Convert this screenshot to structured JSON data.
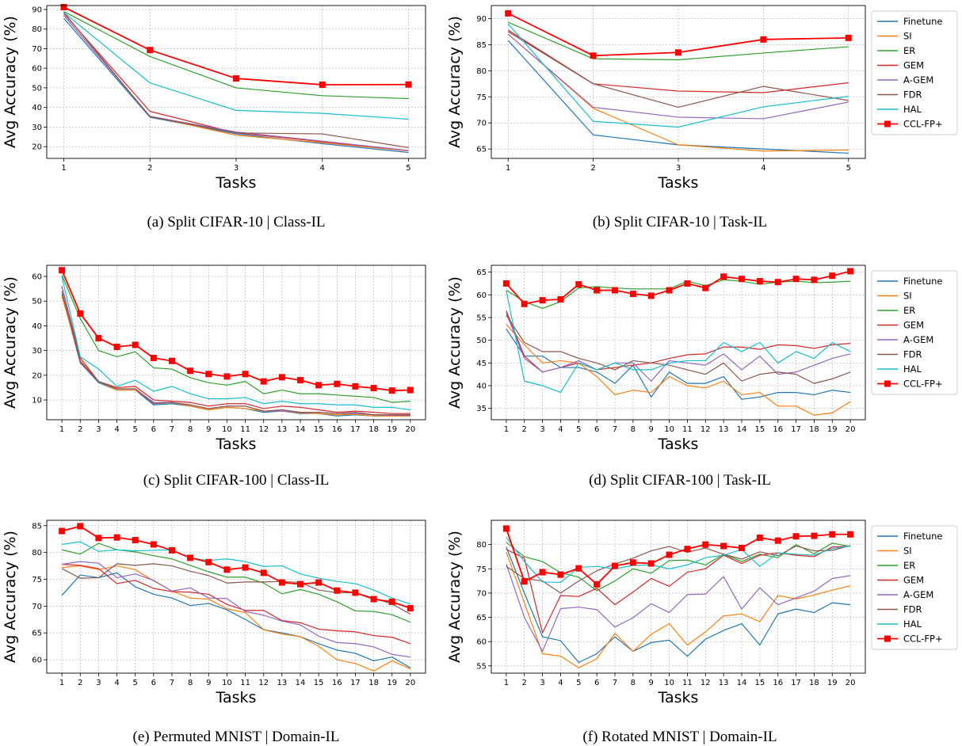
{
  "colors": {
    "Finetune": "#1f77b4",
    "SI": "#ff7f0e",
    "ER": "#2ca02c",
    "GEM": "#d62728",
    "A-GEM": "#9467bd",
    "FDR": "#8c564b",
    "HAL": "#17becf",
    "CCL-FP+": "#ff0000"
  },
  "chart_data": [
    {
      "type": "line",
      "caption": "(a) Split CIFAR-10 | Class-IL",
      "xlabel": "Tasks",
      "ylabel": "Avg Accuracy (%)",
      "x": [
        1,
        2,
        3,
        4,
        5
      ],
      "ylim": [
        14,
        92
      ],
      "yticks": [
        20,
        30,
        40,
        50,
        60,
        70,
        80,
        90
      ],
      "grid": true,
      "legend": "none",
      "series": [
        {
          "name": "Finetune",
          "values": [
            85.5,
            35.0,
            26.5,
            21.5,
            17.0
          ]
        },
        {
          "name": "SI",
          "values": [
            87.0,
            35.5,
            25.8,
            22.0,
            17.8
          ]
        },
        {
          "name": "ER",
          "values": [
            89.0,
            66.0,
            50.0,
            46.0,
            44.5
          ]
        },
        {
          "name": "GEM",
          "values": [
            88.0,
            38.0,
            27.0,
            22.5,
            18.0
          ]
        },
        {
          "name": "A-GEM",
          "values": [
            87.0,
            35.5,
            27.5,
            22.8,
            18.0
          ]
        },
        {
          "name": "FDR",
          "values": [
            88.5,
            35.3,
            27.0,
            26.5,
            19.5
          ]
        },
        {
          "name": "HAL",
          "values": [
            88.5,
            52.5,
            38.5,
            37.0,
            34.0
          ]
        },
        {
          "name": "CCL-FP+",
          "values": [
            91.2,
            69.3,
            54.8,
            51.6,
            51.7
          ]
        }
      ]
    },
    {
      "type": "line",
      "caption": "(b) Split CIFAR-10 | Task-IL",
      "xlabel": "Tasks",
      "ylabel": "Avg Accuracy (%)",
      "x": [
        1,
        2,
        3,
        4,
        5
      ],
      "ylim": [
        63.2,
        92.5
      ],
      "yticks": [
        65,
        70,
        75,
        80,
        85,
        90
      ],
      "grid": true,
      "legend": "right-outside",
      "series": [
        {
          "name": "Finetune",
          "values": [
            85.8,
            67.7,
            65.8,
            65.0,
            64.2
          ]
        },
        {
          "name": "SI",
          "values": [
            87.0,
            72.8,
            65.8,
            64.6,
            64.8
          ]
        },
        {
          "name": "ER",
          "values": [
            89.3,
            82.3,
            82.1,
            83.4,
            84.6
          ]
        },
        {
          "name": "GEM",
          "values": [
            87.8,
            77.5,
            76.1,
            75.8,
            77.7
          ]
        },
        {
          "name": "A-GEM",
          "values": [
            87.0,
            73.0,
            71.1,
            70.8,
            74.0
          ]
        },
        {
          "name": "FDR",
          "values": [
            87.5,
            77.5,
            73.0,
            77.0,
            74.3
          ]
        },
        {
          "name": "HAL",
          "values": [
            89.0,
            70.3,
            69.2,
            73.1,
            75.1
          ]
        },
        {
          "name": "CCL-FP+",
          "values": [
            91.0,
            82.9,
            83.5,
            86.0,
            86.3
          ]
        }
      ]
    },
    {
      "type": "line",
      "caption": "(c) Split CIFAR-100 | Class-IL",
      "xlabel": "Tasks",
      "ylabel": "Avg Accuracy (%)",
      "x": [
        1,
        2,
        3,
        4,
        5,
        6,
        7,
        8,
        9,
        10,
        11,
        12,
        13,
        14,
        15,
        16,
        17,
        18,
        19,
        20
      ],
      "ylim": [
        2,
        64.5
      ],
      "yticks": [
        10,
        20,
        30,
        40,
        50,
        60
      ],
      "grid": true,
      "legend": "none",
      "series": [
        {
          "name": "Finetune",
          "values": [
            53,
            25,
            17,
            14,
            14,
            8,
            8.5,
            7.5,
            6,
            7,
            6.5,
            5,
            5.5,
            4.5,
            4.5,
            3.5,
            4,
            3.5,
            3.5,
            3.5
          ]
        },
        {
          "name": "SI",
          "values": [
            52,
            26,
            17.5,
            14,
            14,
            9,
            9,
            7.5,
            6,
            7,
            6.5,
            5.5,
            5.5,
            4.8,
            4.5,
            4,
            4.2,
            3.5,
            3.5,
            3.5
          ]
        },
        {
          "name": "ER",
          "values": [
            60.5,
            43,
            30,
            27.5,
            29.5,
            23,
            22.5,
            19,
            17,
            16,
            17.5,
            12.5,
            14,
            12.5,
            12.5,
            12,
            11.5,
            11,
            9,
            9.5
          ]
        },
        {
          "name": "GEM",
          "values": [
            56,
            27,
            17.5,
            15,
            15.5,
            10,
            9.5,
            9,
            7.5,
            8.5,
            8.5,
            6.5,
            7.5,
            7,
            6,
            5,
            5.5,
            5,
            4.5,
            4.5
          ]
        },
        {
          "name": "A-GEM",
          "values": [
            56,
            25,
            17.5,
            14.5,
            14.5,
            9,
            9,
            8,
            6.5,
            7.5,
            7.5,
            5.5,
            5.5,
            5,
            5,
            4.5,
            4.5,
            4,
            3.8,
            3.8
          ]
        },
        {
          "name": "FDR",
          "values": [
            54,
            25.5,
            17.5,
            14.5,
            14.5,
            8.5,
            9,
            8,
            6.5,
            7.5,
            7.5,
            5.5,
            6,
            5,
            5,
            4.5,
            5,
            4,
            4,
            4
          ]
        },
        {
          "name": "HAL",
          "values": [
            60,
            27.5,
            22.5,
            15.5,
            18,
            13.5,
            15.5,
            12.5,
            10.5,
            10.5,
            11,
            8.5,
            9.5,
            8.5,
            8.5,
            8,
            8,
            7,
            7,
            6
          ]
        },
        {
          "name": "CCL-FP+",
          "values": [
            62.5,
            45,
            35,
            31.5,
            32.3,
            27,
            25.8,
            21.8,
            20.5,
            19.5,
            20.5,
            17.5,
            19.2,
            18,
            16,
            16.5,
            15.5,
            14.8,
            13.8,
            14
          ]
        }
      ]
    },
    {
      "type": "line",
      "caption": "(d) Split CIFAR-100 | Task-IL",
      "xlabel": "Tasks",
      "ylabel": "Avg Accuracy (%)",
      "x": [
        1,
        2,
        3,
        4,
        5,
        6,
        7,
        8,
        9,
        10,
        11,
        12,
        13,
        14,
        15,
        16,
        17,
        18,
        19,
        20
      ],
      "ylim": [
        32.5,
        66.5
      ],
      "yticks": [
        35,
        40,
        45,
        50,
        55,
        60,
        65
      ],
      "grid": true,
      "legend": "right-outside",
      "series": [
        {
          "name": "Finetune",
          "values": [
            52.5,
            46.5,
            46.5,
            44,
            44,
            43,
            40.5,
            44.5,
            37.5,
            43,
            40.5,
            40.5,
            42,
            37,
            37.5,
            38.5,
            38.5,
            38,
            39,
            38.5
          ]
        },
        {
          "name": "SI",
          "values": [
            53.5,
            49,
            45,
            45.5,
            45,
            42,
            38,
            39,
            38.5,
            42,
            40,
            39.5,
            41,
            38,
            38.5,
            35.5,
            35.5,
            33.5,
            34,
            36.5
          ]
        },
        {
          "name": "ER",
          "values": [
            61,
            58.5,
            57,
            58.5,
            61.5,
            61.8,
            61.5,
            61.3,
            61.3,
            61.3,
            63,
            62,
            63.3,
            63,
            62.3,
            62.8,
            63,
            62.7,
            62.8,
            63
          ]
        },
        {
          "name": "GEM",
          "values": [
            56.5,
            46.5,
            43,
            44,
            45,
            43.5,
            44,
            44.5,
            45,
            46,
            46.8,
            47,
            48.5,
            48.5,
            48,
            49,
            48.8,
            48.2,
            49,
            49.3
          ]
        },
        {
          "name": "A-GEM",
          "values": [
            56,
            46,
            43,
            44,
            45.5,
            43.5,
            45,
            45,
            41,
            45.5,
            45,
            44.5,
            47,
            43.5,
            46.5,
            42.5,
            43,
            44.5,
            46,
            47
          ]
        },
        {
          "name": "FDR",
          "values": [
            55.5,
            49.5,
            47.5,
            47.5,
            46,
            45,
            43.5,
            45.5,
            45,
            44.5,
            43.5,
            42.5,
            45,
            41,
            42.5,
            43,
            42.5,
            40.5,
            41.5,
            43
          ]
        },
        {
          "name": "HAL",
          "values": [
            61,
            41,
            40,
            38.5,
            45,
            43.5,
            45,
            43.5,
            43.5,
            45,
            45.5,
            45.5,
            49.5,
            47.5,
            49.5,
            45,
            47.5,
            46,
            49.5,
            47.5
          ]
        },
        {
          "name": "CCL-FP+",
          "values": [
            62.5,
            58,
            58.8,
            59,
            62.3,
            61,
            61,
            60.2,
            59.8,
            61,
            62.5,
            61.5,
            64,
            63.5,
            63,
            62.8,
            63.5,
            63.3,
            64.2,
            65.2
          ]
        }
      ]
    },
    {
      "type": "line",
      "caption": "(e) Permuted MNIST | Domain-IL",
      "xlabel": "Tasks",
      "ylabel": "Avg Accuracy (%)",
      "x": [
        1,
        2,
        3,
        4,
        5,
        6,
        7,
        8,
        9,
        10,
        11,
        12,
        13,
        14,
        15,
        16,
        17,
        18,
        19,
        20
      ],
      "ylim": [
        57.5,
        86
      ],
      "yticks": [
        60,
        65,
        70,
        75,
        80,
        85
      ],
      "grid": true,
      "legend": "none",
      "series": [
        {
          "name": "Finetune",
          "values": [
            72,
            75.8,
            75.3,
            76.2,
            73.6,
            72.2,
            71.5,
            70.1,
            70.5,
            69.3,
            67.5,
            65.6,
            65,
            64.3,
            63,
            61.8,
            61.2,
            59.8,
            60.5,
            58.5
          ]
        },
        {
          "name": "SI",
          "values": [
            77.2,
            77.5,
            76.8,
            77.5,
            76.8,
            74.7,
            72.8,
            71.5,
            71.3,
            69.5,
            68.8,
            65.6,
            64.8,
            64.3,
            62.5,
            60,
            59.3,
            57.9,
            59.8,
            58.3
          ]
        },
        {
          "name": "ER",
          "values": [
            80.5,
            79.7,
            81.7,
            80.5,
            80.1,
            79.4,
            78.8,
            77.6,
            76.4,
            75.4,
            75.4,
            74.3,
            72.3,
            73.1,
            72.2,
            70.8,
            69.1,
            69,
            68.4,
            67
          ]
        },
        {
          "name": "GEM",
          "values": [
            77.8,
            77.6,
            77,
            74.2,
            74.8,
            73.3,
            72.7,
            72.6,
            72.2,
            70.3,
            69.2,
            69.2,
            67.3,
            66.9,
            65.7,
            65.4,
            65.2,
            64.5,
            64.2,
            63
          ]
        },
        {
          "name": "A-GEM",
          "values": [
            77.8,
            78.3,
            78,
            75.3,
            76,
            74.8,
            72.8,
            73.4,
            71.5,
            71.4,
            69,
            68.3,
            67.2,
            66.5,
            64.4,
            63.2,
            63,
            62.4,
            61,
            60.5
          ]
        },
        {
          "name": "FDR",
          "values": [
            77,
            75.2,
            75.3,
            77.9,
            77.6,
            77.9,
            77.5,
            76.5,
            75.7,
            74.3,
            74.5,
            74.5,
            74.6,
            74.4,
            73,
            72.5,
            72.5,
            71.5,
            70.4,
            68.5
          ]
        },
        {
          "name": "HAL",
          "values": [
            81.5,
            82,
            80.2,
            80.5,
            80.3,
            80.4,
            80.5,
            79,
            78.5,
            78.8,
            78.3,
            77.4,
            77.5,
            76,
            75.2,
            74.6,
            74.2,
            73,
            71.5,
            70.4
          ]
        },
        {
          "name": "CCL-FP+",
          "values": [
            84,
            84.9,
            82.7,
            82.8,
            82.3,
            81.5,
            80.4,
            79,
            78.2,
            76.8,
            77.2,
            76.2,
            74.4,
            74.1,
            74.4,
            72.9,
            72.5,
            71.3,
            70.8,
            69.6
          ]
        }
      ]
    },
    {
      "type": "line",
      "caption": "(f) Rotated MNIST | Domain-IL",
      "xlabel": "Tasks",
      "ylabel": "Avg Accuracy (%)",
      "x": [
        1,
        2,
        3,
        4,
        5,
        6,
        7,
        8,
        9,
        10,
        11,
        12,
        13,
        14,
        15,
        16,
        17,
        18,
        19,
        20
      ],
      "ylim": [
        53.5,
        85
      ],
      "yticks": [
        55,
        60,
        65,
        70,
        75,
        80
      ],
      "grid": true,
      "legend": "right-outside",
      "series": [
        {
          "name": "Finetune",
          "values": [
            79.5,
            70,
            61,
            60.2,
            55.7,
            57.5,
            61,
            58,
            59.8,
            60.3,
            57,
            60.5,
            62.3,
            63.7,
            59.3,
            65.7,
            66.7,
            66,
            68,
            67.6
          ]
        },
        {
          "name": "SI",
          "values": [
            78.5,
            68,
            57.5,
            57,
            54.6,
            56.5,
            61.7,
            58,
            61.5,
            63.7,
            59.3,
            62,
            65.3,
            65.7,
            64.1,
            69.5,
            68.8,
            69.6,
            70.6,
            71.5
          ]
        },
        {
          "name": "ER",
          "values": [
            80.5,
            77.5,
            76.5,
            74.2,
            73.3,
            70.5,
            72.5,
            75,
            74.1,
            76.7,
            76.8,
            75.8,
            78,
            76.5,
            78,
            77.3,
            80,
            78.1,
            80.3,
            79.6
          ]
        },
        {
          "name": "GEM",
          "values": [
            79,
            77.2,
            61.8,
            69.5,
            69.3,
            71,
            67.6,
            70.2,
            73,
            71.4,
            74.3,
            75,
            77.8,
            76.1,
            77.8,
            78.3,
            77.8,
            77.5,
            79.5,
            79.7
          ]
        },
        {
          "name": "A-GEM",
          "values": [
            76,
            65,
            58,
            66.8,
            67.1,
            66.6,
            63,
            64.9,
            67.8,
            66,
            69.7,
            69.8,
            73.4,
            66.7,
            71.1,
            67.6,
            69,
            70.4,
            73,
            73.6
          ]
        },
        {
          "name": "FDR",
          "values": [
            75.5,
            73,
            72.5,
            70,
            72.5,
            74.6,
            76,
            77.2,
            78.7,
            79.6,
            78.4,
            79.3,
            78,
            77,
            78.5,
            77.7,
            79.7,
            78.7,
            78.8,
            79.8
          ]
        },
        {
          "name": "HAL",
          "values": [
            81.5,
            76.5,
            72.3,
            72.2,
            75.3,
            75.5,
            75,
            75.7,
            75.8,
            75,
            75.8,
            77.3,
            77.8,
            79,
            75.5,
            78.3,
            78,
            77.8,
            79.2,
            79.7
          ]
        },
        {
          "name": "CCL-FP+",
          "values": [
            83.3,
            72.4,
            74.3,
            73.8,
            75.1,
            71.8,
            75.6,
            76.3,
            76.1,
            77.9,
            79.1,
            80,
            79.7,
            79.3,
            81.4,
            80.8,
            81.7,
            81.8,
            82.1,
            82.1
          ]
        }
      ]
    }
  ]
}
